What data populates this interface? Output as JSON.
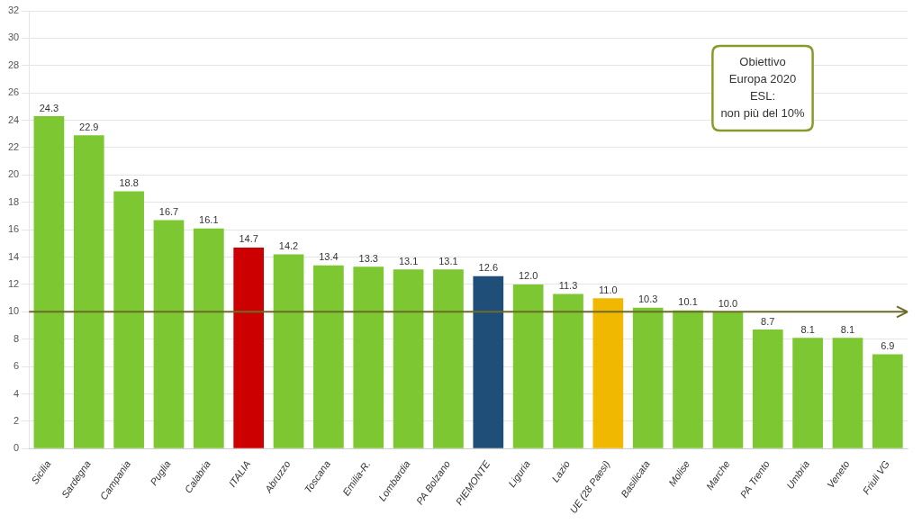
{
  "chart_data": {
    "type": "bar",
    "categories": [
      "Sicilia",
      "Sardegna",
      "Campania",
      "Puglia",
      "Calabria",
      "ITALIA",
      "Abruzzo",
      "Toscana",
      "Emilia-R.",
      "Lombardia",
      "PA Bolzano",
      "PIEMONTE",
      "Liguria",
      "Lazio",
      "UE (28 Paesi)",
      "Basilicata",
      "Molise",
      "Marche",
      "PA Trento",
      "Umbria",
      "Veneto",
      "Friuli VG"
    ],
    "values": [
      24.3,
      22.9,
      18.8,
      16.7,
      16.1,
      14.7,
      14.2,
      13.4,
      13.3,
      13.1,
      13.1,
      12.6,
      12.0,
      11.3,
      11.0,
      10.3,
      10.1,
      10.0,
      8.7,
      8.1,
      8.1,
      6.9
    ],
    "value_labels": [
      "24.3",
      "22.9",
      "18.8",
      "16.7",
      "16.1",
      "14.7",
      "14.2",
      "13.4",
      "13.3",
      "13.1",
      "13.1",
      "12.6",
      "12.0",
      "11.3",
      "11.0",
      "10.3",
      "10.1",
      "10.0",
      "8.7",
      "8.1",
      "8.1",
      "6.9"
    ],
    "colors": [
      "#7dc832",
      "#7dc832",
      "#7dc832",
      "#7dc832",
      "#7dc832",
      "#cc0000",
      "#7dc832",
      "#7dc832",
      "#7dc832",
      "#7dc832",
      "#7dc832",
      "#1f4e79",
      "#7dc832",
      "#7dc832",
      "#f0b800",
      "#7dc832",
      "#7dc832",
      "#7dc832",
      "#7dc832",
      "#7dc832",
      "#7dc832",
      "#7dc832"
    ],
    "ylim": [
      0,
      32
    ],
    "yticks": [
      0,
      2,
      4,
      6,
      8,
      10,
      12,
      14,
      16,
      18,
      20,
      22,
      24,
      26,
      28,
      30,
      32
    ],
    "grid": true,
    "data_labels": true,
    "reference_lines": [
      {
        "value": 10,
        "color": "#6b6b2a"
      }
    ],
    "annotations": [
      {
        "text": "Obiettivo\nEuropa 2020\nESL:\nnon più del 10%",
        "color": "#8a9a2a"
      }
    ]
  }
}
